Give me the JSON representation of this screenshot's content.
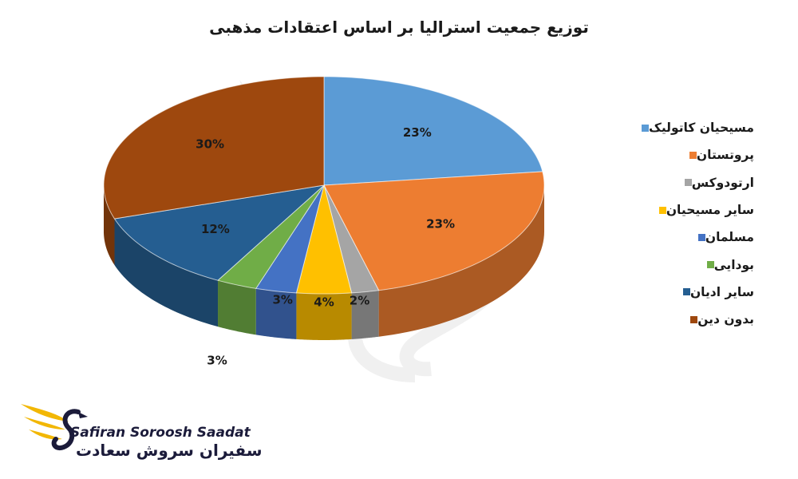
{
  "chart_data": {
    "type": "pie",
    "title": "توزیع جمعیت استرالیا بر اساس اعتقادات مذهبی",
    "categories": [
      "مسیحیان کاتولیک",
      "پروتستان",
      "ارتودوکس",
      "سایر مسیحیان",
      "مسلمان",
      "بودایی",
      "سایر ادیان",
      "بدون دین"
    ],
    "values": [
      23,
      23,
      2,
      4,
      3,
      3,
      12,
      30
    ],
    "data_labels": [
      "23%",
      "23%",
      "2%",
      "4%",
      "3%",
      "3%",
      "12%",
      "30%"
    ],
    "colors": [
      "#5b9bd5",
      "#ed7d31",
      "#a5a5a5",
      "#ffc000",
      "#4472c4",
      "#70ad47",
      "#255e91",
      "#9e480e"
    ],
    "style": "3d-pie",
    "legend_position": "right"
  },
  "logo": {
    "name_en": "Safiran Soroosh Saadat",
    "name_fa": "سفیران سروش سعادت"
  }
}
